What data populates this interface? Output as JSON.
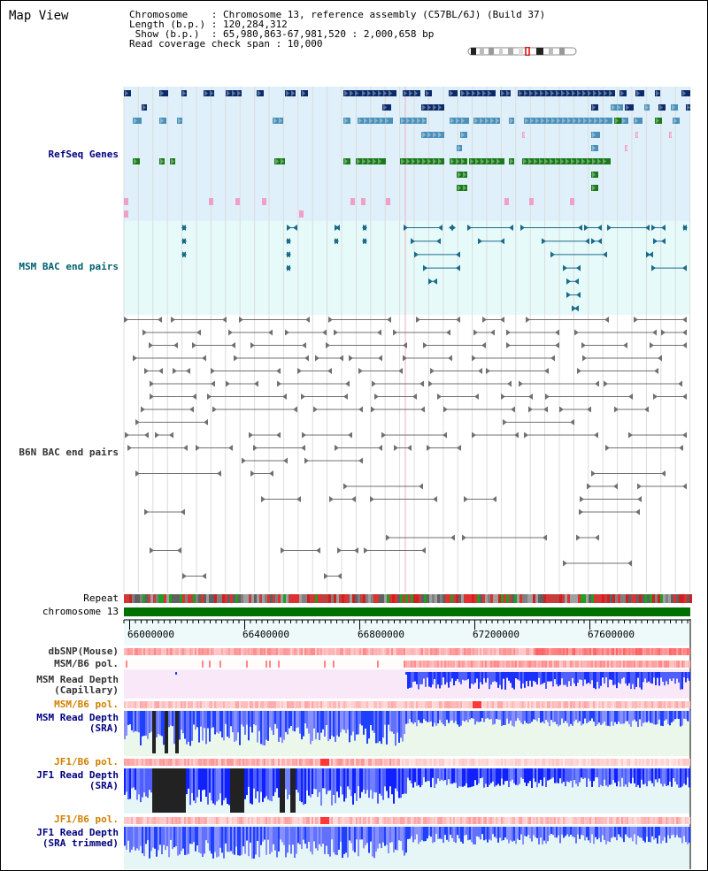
{
  "header": {
    "title": "Map View",
    "info_lines": [
      "Chromosome    : Chromosome 13, reference assembly (C57BL/6J) (Build 37)",
      "Length (b.p.) : 120,284,312",
      " Show (b.p.)  : 65,980,863-67,981,520 : 2,000,658 bp",
      "Read coverage check span : 10,000"
    ]
  },
  "tracks": {
    "refseq": "RefSeq Genes",
    "msm_bac": "MSM BAC end pairs",
    "b6n_bac": "B6N BAC end pairs",
    "repeat": "Repeat",
    "chromosome": "chromosome 13",
    "dbsnp": "dbSNP(Mouse)",
    "msm_b6_pol": "MSM/B6 pol.",
    "msm_depth_cap_1": "MSM Read Depth",
    "msm_depth_cap_2": "(Capillary)",
    "msm_b6_pol_2": "MSM/B6 pol.",
    "msm_depth_sra_1": "MSM Read Depth",
    "msm_depth_sra_2": "(SRA)",
    "jf1_b6_pol": "JF1/B6 pol.",
    "jf1_depth_sra_1": "JF1 Read Depth",
    "jf1_depth_sra_2": "(SRA)",
    "jf1_b6_pol_2": "JF1/B6 pol.",
    "jf1_depth_trim_1": "JF1 Read Depth",
    "jf1_depth_trim_2": "(SRA trimmed)"
  },
  "axis": {
    "ticks": [
      "66000000",
      "66400000",
      "66800000",
      "67200000",
      "67600000"
    ]
  },
  "colors": {
    "refseq_bg": "#dff0fa",
    "msm_bg": "#e6fafa",
    "navy": "#0a2a6a",
    "steel": "#4a90b8",
    "green": "#1a7a1a",
    "pink": "#f0a0c8",
    "teal": "#1a6a8a",
    "gray": "#707070",
    "chromosome": "#007000",
    "depth_blue": "#2040ff"
  }
}
